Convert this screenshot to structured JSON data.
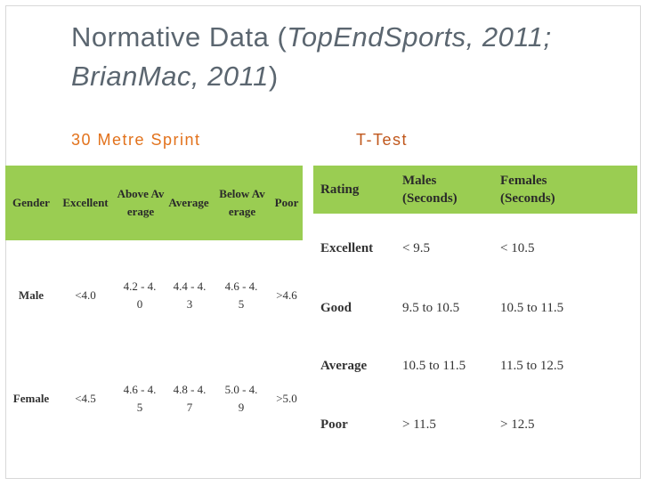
{
  "slide": {
    "title_main": "Normative Data (",
    "title_ital_1": "TopEndSports, 2011;",
    "title_ital_2": "BrianMac, 2011",
    "title_close": ")"
  },
  "sprint": {
    "heading": "30 Metre Sprint",
    "headers": [
      "Gender",
      "Excellent",
      "Above Average",
      "Average",
      "Below Average",
      "Poor"
    ],
    "rows": [
      [
        "Male",
        "<4.0",
        "4.2 - 4.0",
        "4.4 - 4.3",
        "4.6 - 4.5",
        ">4.6"
      ],
      [
        "Female",
        "<4.5",
        "4.6 - 4.5",
        "4.8 - 4.7",
        "5.0 - 4.9",
        ">5.0"
      ]
    ]
  },
  "ttest": {
    "heading": "T-Test",
    "headers": [
      "Rating",
      "Males (Seconds)",
      "Females (Seconds)"
    ],
    "rows": [
      [
        "Excellent",
        "< 9.5",
        "< 10.5"
      ],
      [
        "Good",
        "9.5 to 10.5",
        "10.5 to 11.5"
      ],
      [
        "Average",
        "10.5 to 11.5",
        "11.5 to 12.5"
      ],
      [
        "Poor",
        "> 11.5",
        "> 12.5"
      ]
    ]
  },
  "colors": {
    "header_green": "#9acd52",
    "heading_orange": "#e2721c",
    "title_gray": "#5b6670"
  }
}
